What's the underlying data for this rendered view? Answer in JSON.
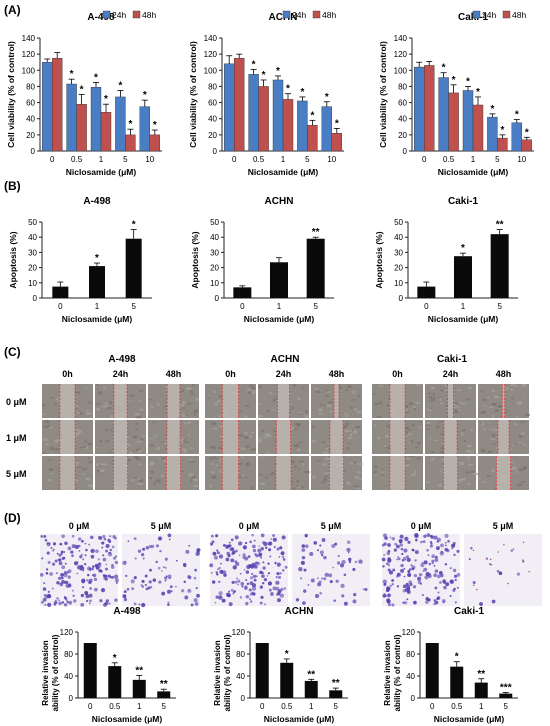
{
  "panel_labels": {
    "a": "(A)",
    "b": "(B)",
    "c": "(C)",
    "d": "(D)"
  },
  "colors": {
    "h24": "#4a7ec4",
    "h48": "#c0504d",
    "bar": "#0a0a0a",
    "err": "#000000",
    "crystal_violet": "#5a3fb0",
    "scratch_line": "#d83a3a",
    "micro_bg": "#8f8a84"
  },
  "chart_data": [
    {
      "type": "bar",
      "panel": "A",
      "title": "A-498",
      "categories": [
        "0",
        "0.5",
        "1",
        "5",
        "10"
      ],
      "series": [
        {
          "name": "24h",
          "values": [
            110,
            83,
            79,
            67,
            55
          ],
          "errors": [
            4,
            6,
            6,
            8,
            8
          ],
          "stars": [
            "",
            "*",
            "*",
            "*",
            "*"
          ]
        },
        {
          "name": "48h",
          "values": [
            115,
            58,
            48,
            20,
            20
          ],
          "errors": [
            7,
            12,
            10,
            7,
            6
          ],
          "stars": [
            "",
            "*",
            "*",
            "*",
            "*"
          ]
        }
      ],
      "xlabel": "Niclosamide (μM)",
      "ylabel": "Cell viability (% of control)",
      "ylim": [
        0,
        140
      ],
      "yticks": [
        0,
        20,
        40,
        60,
        80,
        100,
        120,
        140
      ]
    },
    {
      "type": "bar",
      "panel": "A",
      "title": "ACHN",
      "categories": [
        "0",
        "0.5",
        "1",
        "5",
        "10"
      ],
      "series": [
        {
          "name": "24h",
          "values": [
            108,
            95,
            88,
            62,
            55
          ],
          "errors": [
            10,
            6,
            5,
            5,
            6
          ],
          "stars": [
            "",
            "*",
            "*",
            "*",
            "*"
          ]
        },
        {
          "name": "48h",
          "values": [
            115,
            80,
            64,
            32,
            22
          ],
          "errors": [
            5,
            8,
            7,
            6,
            6
          ],
          "stars": [
            "",
            "*",
            "*",
            "*",
            "*"
          ]
        }
      ],
      "xlabel": "Niclosamide (μM)",
      "ylabel": "Cell viability (% of control)",
      "ylim": [
        0,
        140
      ],
      "yticks": [
        0,
        20,
        40,
        60,
        80,
        100,
        120,
        140
      ]
    },
    {
      "type": "bar",
      "panel": "A",
      "title": "Caki-1",
      "categories": [
        "0",
        "0.5",
        "1",
        "5",
        "10"
      ],
      "series": [
        {
          "name": "24h",
          "values": [
            104,
            91,
            75,
            42,
            35
          ],
          "errors": [
            6,
            6,
            5,
            4,
            4
          ],
          "stars": [
            "",
            "*",
            "*",
            "*",
            "*"
          ]
        },
        {
          "name": "48h",
          "values": [
            106,
            72,
            57,
            16,
            14
          ],
          "errors": [
            5,
            10,
            10,
            4,
            3
          ],
          "stars": [
            "",
            "*",
            "*",
            "*",
            "*"
          ]
        }
      ],
      "xlabel": "Niclosamide (μM)",
      "ylabel": "Cell viability (% of control)",
      "ylim": [
        0,
        140
      ],
      "yticks": [
        0,
        20,
        40,
        60,
        80,
        100,
        120,
        140
      ]
    },
    {
      "type": "bar",
      "panel": "B",
      "title": "A-498",
      "categories": [
        "0",
        "1",
        "5"
      ],
      "values": [
        7.5,
        21,
        39
      ],
      "errors": [
        3,
        2,
        6
      ],
      "stars": [
        "",
        "*",
        "*"
      ],
      "xlabel": "Niclosamide (μM)",
      "ylabel": "Apoptosis (%)",
      "ylim": [
        0,
        50
      ],
      "yticks": [
        0,
        10,
        20,
        30,
        40,
        50
      ]
    },
    {
      "type": "bar",
      "panel": "B",
      "title": "ACHN",
      "categories": [
        "0",
        "1",
        "5"
      ],
      "values": [
        7,
        23.5,
        39
      ],
      "errors": [
        1,
        3,
        1
      ],
      "stars": [
        "",
        "",
        "**"
      ],
      "xlabel": "Niclosamide (μM)",
      "ylabel": "Apoptosis (%)",
      "ylim": [
        0,
        50
      ],
      "yticks": [
        0,
        10,
        20,
        30,
        40,
        50
      ]
    },
    {
      "type": "bar",
      "panel": "B",
      "title": "Caki-1",
      "categories": [
        "0",
        "1",
        "5"
      ],
      "values": [
        7.5,
        27.5,
        42
      ],
      "errors": [
        3,
        2,
        3
      ],
      "stars": [
        "",
        "*",
        "**"
      ],
      "xlabel": "Niclosamide (μM)",
      "ylabel": "Apoptosis (%)",
      "ylim": [
        0,
        50
      ],
      "yticks": [
        0,
        10,
        20,
        30,
        40,
        50
      ]
    },
    {
      "type": "bar",
      "panel": "D",
      "title": "A-498",
      "categories": [
        "0",
        "0.5",
        "1",
        "5"
      ],
      "values": [
        100,
        58,
        33,
        12
      ],
      "errors": [
        0,
        6,
        8,
        4
      ],
      "stars": [
        "",
        "*",
        "**",
        "**"
      ],
      "xlabel": "Niclosamide (μM)",
      "ylabel": "Relative invasion ability (% of control)",
      "ylim": [
        0,
        120
      ],
      "yticks": [
        0,
        40,
        80,
        120
      ]
    },
    {
      "type": "bar",
      "panel": "D",
      "title": "ACHN",
      "categories": [
        "0",
        "0.5",
        "1",
        "5"
      ],
      "values": [
        100,
        64,
        31,
        14
      ],
      "errors": [
        0,
        7,
        3,
        4
      ],
      "stars": [
        "",
        "*",
        "**",
        "**"
      ],
      "xlabel": "Niclosamide (μM)",
      "ylabel": "Relative invasion ability (% of control)",
      "ylim": [
        0,
        120
      ],
      "yticks": [
        0,
        40,
        80,
        120
      ]
    },
    {
      "type": "bar",
      "panel": "D",
      "title": "Caki-1",
      "categories": [
        "0",
        "0.5",
        "1",
        "5"
      ],
      "values": [
        100,
        57,
        28,
        8
      ],
      "errors": [
        0,
        9,
        7,
        2
      ],
      "stars": [
        "",
        "*",
        "**",
        "***"
      ],
      "xlabel": "Niclosamide (μM)",
      "ylabel": "Relative invasion ability (% of control)",
      "ylim": [
        0,
        120
      ],
      "yticks": [
        0,
        40,
        80,
        120
      ]
    }
  ],
  "scratch_assay": {
    "panel": "C",
    "groups": [
      {
        "cell_line": "A-498",
        "gap": [
          [
            0.3,
            0.26,
            0.25
          ],
          [
            0.3,
            0.28,
            0.26
          ],
          [
            0.3,
            0.28,
            0.28
          ]
        ]
      },
      {
        "cell_line": "ACHN",
        "gap": [
          [
            0.32,
            0.24,
            0.1
          ],
          [
            0.32,
            0.28,
            0.26
          ],
          [
            0.32,
            0.3,
            0.28
          ]
        ]
      },
      {
        "cell_line": "Caki-1",
        "gap": [
          [
            0.3,
            0.12,
            0.05
          ],
          [
            0.3,
            0.26,
            0.22
          ],
          [
            0.3,
            0.28,
            0.28
          ]
        ]
      }
    ],
    "timepoints": [
      "0h",
      "24h",
      "48h"
    ],
    "doses": [
      "0 μM",
      "1 μM",
      "5 μM"
    ]
  },
  "invasion_images": {
    "panel": "D",
    "labels": [
      "0 μM",
      "5 μM"
    ],
    "density": [
      [
        0.85,
        0.35
      ],
      [
        0.75,
        0.25
      ],
      [
        0.8,
        0.05
      ]
    ]
  }
}
